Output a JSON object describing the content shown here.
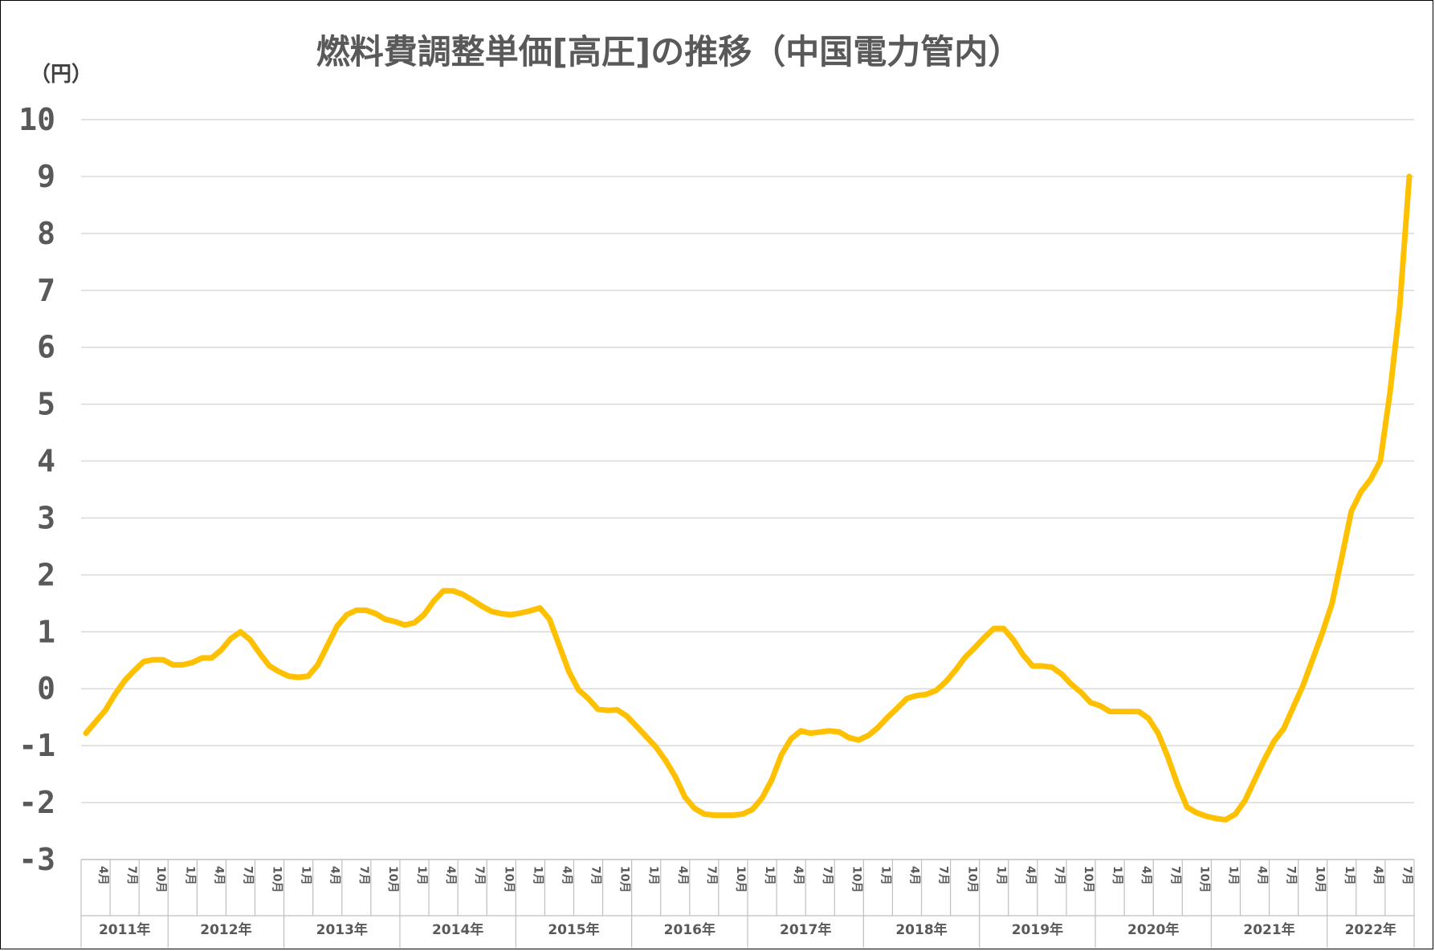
{
  "chart_data": {
    "type": "line",
    "title": "燃料費調整単価[高圧]の推移（中国電力管内）",
    "unit_label": "（円）",
    "ylim": [
      -3,
      10
    ],
    "yticks": [
      "10",
      "9",
      "8",
      "7",
      "6",
      "5",
      "4",
      "3",
      "2",
      "1",
      "0",
      "-1",
      "-2",
      "-3"
    ],
    "grid": true,
    "line_color": "#FFC000",
    "year_groups": [
      {
        "label": "2011年",
        "months": [
          "4月",
          "7月",
          "10月"
        ]
      },
      {
        "label": "2012年",
        "months": [
          "1月",
          "4月",
          "7月",
          "10月"
        ]
      },
      {
        "label": "2013年",
        "months": [
          "1月",
          "4月",
          "7月",
          "10月"
        ]
      },
      {
        "label": "2014年",
        "months": [
          "1月",
          "4月",
          "7月",
          "10月"
        ]
      },
      {
        "label": "2015年",
        "months": [
          "1月",
          "4月",
          "7月",
          "10月"
        ]
      },
      {
        "label": "2016年",
        "months": [
          "1月",
          "4月",
          "7月",
          "10月"
        ]
      },
      {
        "label": "2017年",
        "months": [
          "1月",
          "4月",
          "7月",
          "10月"
        ]
      },
      {
        "label": "2018年",
        "months": [
          "1月",
          "4月",
          "7月",
          "10月"
        ]
      },
      {
        "label": "2019年",
        "months": [
          "1月",
          "4月",
          "7月",
          "10月"
        ]
      },
      {
        "label": "2020年",
        "months": [
          "1月",
          "4月",
          "7月",
          "10月"
        ]
      },
      {
        "label": "2021年",
        "months": [
          "1月",
          "4月",
          "7月",
          "10月"
        ]
      },
      {
        "label": "2022年",
        "months": [
          "1月",
          "4月",
          "7月"
        ]
      }
    ],
    "series": [
      {
        "start": "2011-04",
        "values": [
          -0.78,
          -0.58,
          -0.38,
          -0.1,
          0.14,
          0.32,
          0.48,
          0.51,
          0.51,
          0.42,
          0.42,
          0.46,
          0.54,
          0.54,
          0.68,
          0.88,
          1.0,
          0.86,
          0.62,
          0.4,
          0.3,
          0.22,
          0.2,
          0.22,
          0.42,
          0.76,
          1.1,
          1.3,
          1.38,
          1.38,
          1.32,
          1.22,
          1.18,
          1.12,
          1.16,
          1.3,
          1.54,
          1.72,
          1.72,
          1.66,
          1.56,
          1.45,
          1.36,
          1.32,
          1.3,
          1.33,
          1.37,
          1.42,
          1.22,
          0.76,
          0.3,
          -0.02,
          -0.17,
          -0.36,
          -0.38,
          -0.37,
          -0.48,
          -0.66,
          -0.84,
          -1.02,
          -1.26,
          -1.54,
          -1.9,
          -2.1,
          -2.2,
          -2.22,
          -2.22,
          -2.22,
          -2.2,
          -2.12,
          -1.92,
          -1.6,
          -1.16,
          -0.88,
          -0.74,
          -0.78,
          -0.76,
          -0.74,
          -0.76,
          -0.86,
          -0.9,
          -0.82,
          -0.68,
          -0.5,
          -0.34,
          -0.17,
          -0.12,
          -0.1,
          -0.03,
          0.12,
          0.32,
          0.55,
          0.72,
          0.9,
          1.06,
          1.06,
          0.86,
          0.6,
          0.4,
          0.4,
          0.38,
          0.26,
          0.08,
          -0.06,
          -0.24,
          -0.3,
          -0.4,
          -0.4,
          -0.4,
          -0.4,
          -0.52,
          -0.78,
          -1.2,
          -1.68,
          -2.08,
          -2.18,
          -2.24,
          -2.28,
          -2.3,
          -2.2,
          -1.96,
          -1.6,
          -1.24,
          -0.92,
          -0.7,
          -0.32,
          0.06,
          0.52,
          0.98,
          1.5,
          2.3,
          3.12,
          3.46,
          3.68,
          4.0,
          5.2,
          6.7,
          9.0
        ]
      }
    ]
  }
}
